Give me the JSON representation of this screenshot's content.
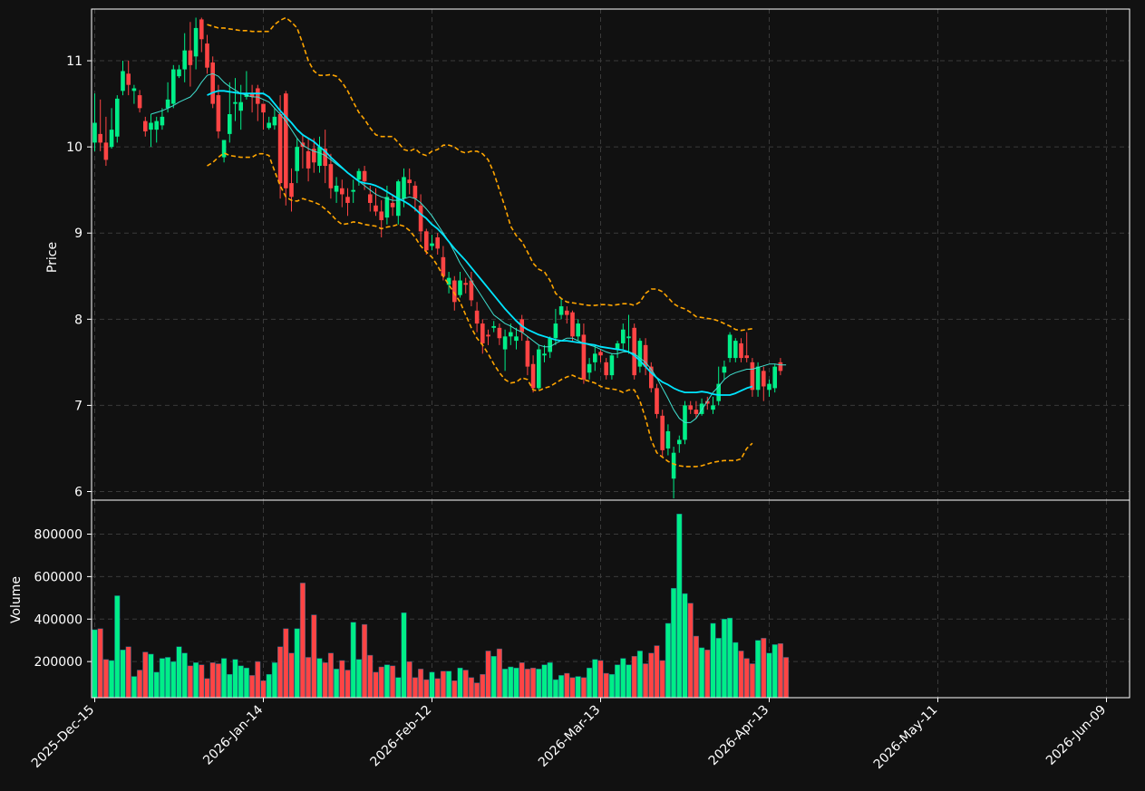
{
  "chart_data": {
    "type": "candlestick",
    "price_panel": {
      "ylabel": "Price",
      "ylim": [
        5.9,
        11.6
      ],
      "yticks": [
        6,
        7,
        8,
        9,
        10,
        11
      ]
    },
    "volume_panel": {
      "ylabel": "Volume",
      "ylim": [
        30000,
        960000
      ],
      "yticks": [
        200000,
        400000,
        600000,
        800000
      ]
    },
    "x_tick_labels": [
      "2025-Dec-15",
      "2026-Jan-14",
      "2026-Feb-12",
      "2026-Mar-13",
      "2026-Apr-13",
      "2026-May-11",
      "2026-Jun-09"
    ],
    "x_tick_indices": [
      0,
      30,
      60,
      90,
      120,
      150,
      180
    ],
    "grid": true,
    "colors": {
      "background": "#111111",
      "up": "#00ee88",
      "down": "#ff4444",
      "ma_fast": "#40e0d0",
      "ma_slow": "#00e5ff",
      "bands": "#ffa500",
      "grid": "#3a3a3a",
      "axis": "#ffffff"
    },
    "candles": [
      [
        10.05,
        10.28,
        10.62,
        9.95
      ],
      [
        10.15,
        10.05,
        10.55,
        9.95
      ],
      [
        10.05,
        9.85,
        10.35,
        9.78
      ],
      [
        10.0,
        10.2,
        10.45,
        9.98
      ],
      [
        10.12,
        10.56,
        10.6,
        10.05
      ],
      [
        10.65,
        10.88,
        11.0,
        10.6
      ],
      [
        10.85,
        10.72,
        11.0,
        10.6
      ],
      [
        10.65,
        10.68,
        10.72,
        10.5
      ],
      [
        10.6,
        10.45,
        10.66,
        10.4
      ],
      [
        10.3,
        10.18,
        10.35,
        10.12
      ],
      [
        10.2,
        10.28,
        10.38,
        10.0
      ],
      [
        10.2,
        10.3,
        10.35,
        10.05
      ],
      [
        10.25,
        10.35,
        10.45,
        10.2
      ],
      [
        10.45,
        10.55,
        10.75,
        10.4
      ],
      [
        10.5,
        10.9,
        10.95,
        10.45
      ],
      [
        10.82,
        10.9,
        10.95,
        10.8
      ],
      [
        10.9,
        11.12,
        11.32,
        10.75
      ],
      [
        11.12,
        10.95,
        11.45,
        10.7
      ],
      [
        11.05,
        11.38,
        11.5,
        10.9
      ],
      [
        11.48,
        11.25,
        11.5,
        11.1
      ],
      [
        11.2,
        10.92,
        11.3,
        10.85
      ],
      [
        10.98,
        10.5,
        11.05,
        10.45
      ],
      [
        10.6,
        10.18,
        10.72,
        10.1
      ],
      [
        9.88,
        10.08,
        10.08,
        9.82
      ],
      [
        10.15,
        10.38,
        10.75,
        10.05
      ],
      [
        10.5,
        10.52,
        10.8,
        10.3
      ],
      [
        10.42,
        10.52,
        10.72,
        10.2
      ],
      [
        10.58,
        10.62,
        10.88,
        10.55
      ],
      [
        10.62,
        10.58,
        10.72,
        10.4
      ],
      [
        10.68,
        10.5,
        10.72,
        10.3
      ],
      [
        10.5,
        10.4,
        10.5,
        10.2
      ],
      [
        10.22,
        10.28,
        10.35,
        10.2
      ],
      [
        10.25,
        10.35,
        10.45,
        10.2
      ],
      [
        10.38,
        9.58,
        10.6,
        9.4
      ],
      [
        10.62,
        9.52,
        10.65,
        9.32
      ],
      [
        9.58,
        9.42,
        9.75,
        9.25
      ],
      [
        9.72,
        10.0,
        10.1,
        9.58
      ],
      [
        10.05,
        10.0,
        10.15,
        9.75
      ],
      [
        9.95,
        9.75,
        10.1,
        9.6
      ],
      [
        9.98,
        9.82,
        10.1,
        9.7
      ],
      [
        9.78,
        10.0,
        10.12,
        9.7
      ],
      [
        9.98,
        9.78,
        10.2,
        9.58
      ],
      [
        9.8,
        9.52,
        9.92,
        9.4
      ],
      [
        9.48,
        9.55,
        9.65,
        9.35
      ],
      [
        9.52,
        9.45,
        9.62,
        9.3
      ],
      [
        9.42,
        9.35,
        9.52,
        9.2
      ],
      [
        9.48,
        9.5,
        9.62,
        9.35
      ],
      [
        9.62,
        9.72,
        9.75,
        9.55
      ],
      [
        9.72,
        9.6,
        9.78,
        9.5
      ],
      [
        9.45,
        9.35,
        9.55,
        9.25
      ],
      [
        9.32,
        9.25,
        9.52,
        9.2
      ],
      [
        9.25,
        9.15,
        9.38,
        8.95
      ],
      [
        9.18,
        9.42,
        9.55,
        9.1
      ],
      [
        9.35,
        9.3,
        9.45,
        9.2
      ],
      [
        9.2,
        9.6,
        9.62,
        9.1
      ],
      [
        9.4,
        9.65,
        9.75,
        9.3
      ],
      [
        9.62,
        9.58,
        9.75,
        9.45
      ],
      [
        9.55,
        9.4,
        9.6,
        9.25
      ],
      [
        9.32,
        9.02,
        9.45,
        8.9
      ],
      [
        9.02,
        8.8,
        9.05,
        8.75
      ],
      [
        8.85,
        8.88,
        8.98,
        8.8
      ],
      [
        8.95,
        8.82,
        9.0,
        8.75
      ],
      [
        8.72,
        8.5,
        8.85,
        8.45
      ],
      [
        8.4,
        8.48,
        8.55,
        8.3
      ],
      [
        8.45,
        8.2,
        8.5,
        8.1
      ],
      [
        8.28,
        8.45,
        8.55,
        8.25
      ],
      [
        8.42,
        8.4,
        8.48,
        8.3
      ],
      [
        8.45,
        8.22,
        8.55,
        8.15
      ],
      [
        8.1,
        7.95,
        8.2,
        7.85
      ],
      [
        7.95,
        7.72,
        8.0,
        7.6
      ],
      [
        7.82,
        7.8,
        7.88,
        7.7
      ],
      [
        7.9,
        7.92,
        7.98,
        7.85
      ],
      [
        7.9,
        7.78,
        7.95,
        7.7
      ],
      [
        7.65,
        7.8,
        7.88,
        7.4
      ],
      [
        7.8,
        7.85,
        7.95,
        7.7
      ],
      [
        7.75,
        7.8,
        7.9,
        7.65
      ],
      [
        8.0,
        7.85,
        8.05,
        7.75
      ],
      [
        7.75,
        7.45,
        7.8,
        7.35
      ],
      [
        7.48,
        7.2,
        7.58,
        7.15
      ],
      [
        7.2,
        7.65,
        7.7,
        7.18
      ],
      [
        7.58,
        7.6,
        7.7,
        7.5
      ],
      [
        7.62,
        7.78,
        7.8,
        7.55
      ],
      [
        7.78,
        7.95,
        8.12,
        7.7
      ],
      [
        8.05,
        8.15,
        8.25,
        8.0
      ],
      [
        8.1,
        8.05,
        8.15,
        7.95
      ],
      [
        8.08,
        7.8,
        8.1,
        7.75
      ],
      [
        7.8,
        7.95,
        8.0,
        7.75
      ],
      [
        7.82,
        7.3,
        7.95,
        7.25
      ],
      [
        7.38,
        7.48,
        7.55,
        7.3
      ],
      [
        7.5,
        7.6,
        7.7,
        7.4
      ],
      [
        7.62,
        7.58,
        7.65,
        7.5
      ],
      [
        7.5,
        7.35,
        7.55,
        7.3
      ],
      [
        7.35,
        7.58,
        7.6,
        7.3
      ],
      [
        7.65,
        7.72,
        7.75,
        7.55
      ],
      [
        7.72,
        7.88,
        7.95,
        7.65
      ],
      [
        7.78,
        7.8,
        8.05,
        7.6
      ],
      [
        7.9,
        7.35,
        7.95,
        7.3
      ],
      [
        7.45,
        7.75,
        7.78,
        7.38
      ],
      [
        7.7,
        7.45,
        7.78,
        7.35
      ],
      [
        7.45,
        7.2,
        7.5,
        7.15
      ],
      [
        7.2,
        6.9,
        7.25,
        6.85
      ],
      [
        6.88,
        6.48,
        6.95,
        6.4
      ],
      [
        6.5,
        6.7,
        6.78,
        6.42
      ],
      [
        6.15,
        6.45,
        6.52,
        5.92
      ],
      [
        6.55,
        6.6,
        6.65,
        6.45
      ],
      [
        6.6,
        7.0,
        7.05,
        6.55
      ],
      [
        7.0,
        6.95,
        7.05,
        6.9
      ],
      [
        6.95,
        6.9,
        7.05,
        6.85
      ],
      [
        6.9,
        7.02,
        7.08,
        6.88
      ],
      [
        7.05,
        7.02,
        7.1,
        6.95
      ],
      [
        6.95,
        7.0,
        7.1,
        6.9
      ],
      [
        7.05,
        7.25,
        7.45,
        7.0
      ],
      [
        7.38,
        7.45,
        7.52,
        7.3
      ],
      [
        7.55,
        7.82,
        7.85,
        7.5
      ],
      [
        7.55,
        7.75,
        7.78,
        7.5
      ],
      [
        7.72,
        7.55,
        7.78,
        7.5
      ],
      [
        7.58,
        7.55,
        7.85,
        7.5
      ],
      [
        7.5,
        7.18,
        7.55,
        7.1
      ],
      [
        7.18,
        7.45,
        7.5,
        7.1
      ],
      [
        7.4,
        7.22,
        7.45,
        7.05
      ],
      [
        7.18,
        7.25,
        7.3,
        7.1
      ],
      [
        7.2,
        7.45,
        7.48,
        7.15
      ],
      [
        7.5,
        7.4,
        7.55,
        7.35
      ]
    ],
    "volume": [
      350000,
      355000,
      210000,
      205000,
      510000,
      255000,
      270000,
      130000,
      160000,
      245000,
      235000,
      150000,
      215000,
      220000,
      200000,
      270000,
      240000,
      180000,
      195000,
      185000,
      120000,
      195000,
      190000,
      215000,
      140000,
      210000,
      180000,
      170000,
      135000,
      200000,
      110000,
      140000,
      195000,
      270000,
      355000,
      240000,
      355000,
      570000,
      220000,
      420000,
      215000,
      195000,
      240000,
      165000,
      205000,
      160000,
      385000,
      210000,
      375000,
      230000,
      150000,
      175000,
      185000,
      180000,
      125000,
      430000,
      200000,
      125000,
      165000,
      115000,
      150000,
      120000,
      155000,
      155000,
      110000,
      170000,
      160000,
      125000,
      100000,
      140000,
      250000,
      225000,
      260000,
      165000,
      175000,
      170000,
      195000,
      165000,
      170000,
      165000,
      185000,
      195000,
      115000,
      135000,
      145000,
      125000,
      130000,
      125000,
      170000,
      210000,
      205000,
      145000,
      140000,
      185000,
      215000,
      185000,
      225000,
      250000,
      190000,
      240000,
      275000,
      205000,
      380000,
      545000,
      895000,
      520000,
      475000,
      320000,
      265000,
      255000,
      380000,
      310000,
      400000,
      405000,
      290000,
      250000,
      215000,
      190000,
      300000,
      310000,
      240000,
      280000,
      285000,
      220000
    ],
    "ma_fast": [
      null,
      null,
      null,
      null,
      null,
      null,
      null,
      null,
      null,
      null,
      10.38,
      10.4,
      10.42,
      10.45,
      10.48,
      10.52,
      10.55,
      10.58,
      10.65,
      10.75,
      10.83,
      10.85,
      10.82,
      10.75,
      10.7,
      10.66,
      10.62,
      10.6,
      10.58,
      10.58,
      10.55,
      10.52,
      10.45,
      10.38,
      10.3,
      10.2,
      10.1,
      10.02,
      9.98,
      9.95,
      9.93,
      9.9,
      9.85,
      9.8,
      9.75,
      9.7,
      9.65,
      9.6,
      9.55,
      9.5,
      9.45,
      9.42,
      9.4,
      9.38,
      9.38,
      9.4,
      9.42,
      9.4,
      9.35,
      9.28,
      9.2,
      9.1,
      9.0,
      8.9,
      8.78,
      8.65,
      8.55,
      8.45,
      8.35,
      8.25,
      8.15,
      8.05,
      8.0,
      7.95,
      7.92,
      7.88,
      7.85,
      7.8,
      7.75,
      7.7,
      7.68,
      7.68,
      7.72,
      7.75,
      7.78,
      7.78,
      7.75,
      7.72,
      7.7,
      7.68,
      7.65,
      7.62,
      7.6,
      7.6,
      7.62,
      7.62,
      7.6,
      7.55,
      7.5,
      7.42,
      7.32,
      7.2,
      7.08,
      6.95,
      6.85,
      6.8,
      6.8,
      6.85,
      6.95,
      7.05,
      7.15,
      7.22,
      7.3,
      7.35,
      7.38,
      7.4,
      7.42,
      7.42,
      7.44,
      7.46,
      7.48,
      7.48,
      7.47,
      7.47
    ],
    "ma_slow": [
      null,
      null,
      null,
      null,
      null,
      null,
      null,
      null,
      null,
      null,
      null,
      null,
      null,
      null,
      null,
      null,
      null,
      null,
      null,
      null,
      10.6,
      10.63,
      10.65,
      10.65,
      10.64,
      10.63,
      10.62,
      10.62,
      10.62,
      10.62,
      10.62,
      10.58,
      10.5,
      10.42,
      10.35,
      10.28,
      10.2,
      10.14,
      10.1,
      10.06,
      10.0,
      9.95,
      9.88,
      9.82,
      9.76,
      9.7,
      9.65,
      9.6,
      9.58,
      9.57,
      9.55,
      9.52,
      9.48,
      9.44,
      9.4,
      9.37,
      9.33,
      9.28,
      9.22,
      9.17,
      9.1,
      9.05,
      8.98,
      8.9,
      8.82,
      8.75,
      8.68,
      8.6,
      8.52,
      8.44,
      8.36,
      8.28,
      8.2,
      8.12,
      8.05,
      7.98,
      7.92,
      7.88,
      7.85,
      7.82,
      7.8,
      7.78,
      7.76,
      7.75,
      7.75,
      7.74,
      7.73,
      7.72,
      7.71,
      7.7,
      7.68,
      7.67,
      7.66,
      7.65,
      7.64,
      7.62,
      7.58,
      7.52,
      7.45,
      7.38,
      7.32,
      7.27,
      7.24,
      7.2,
      7.17,
      7.15,
      7.15,
      7.15,
      7.16,
      7.15,
      7.13,
      7.12,
      7.12,
      7.12,
      7.14,
      7.17,
      7.2,
      7.22
    ],
    "band_upper": [
      null,
      null,
      null,
      null,
      null,
      null,
      null,
      null,
      null,
      null,
      null,
      null,
      null,
      null,
      null,
      null,
      null,
      null,
      null,
      null,
      11.42,
      11.4,
      11.38,
      11.38,
      11.37,
      11.36,
      11.35,
      11.35,
      11.34,
      11.34,
      11.34,
      11.34,
      11.42,
      11.47,
      11.5,
      11.45,
      11.38,
      11.2,
      11.0,
      10.88,
      10.83,
      10.83,
      10.84,
      10.82,
      10.75,
      10.65,
      10.52,
      10.4,
      10.32,
      10.22,
      10.14,
      10.12,
      10.12,
      10.12,
      10.05,
      9.97,
      9.95,
      9.98,
      9.92,
      9.9,
      9.95,
      9.97,
      10.02,
      10.02,
      10.0,
      9.95,
      9.93,
      9.95,
      9.95,
      9.92,
      9.85,
      9.7,
      9.5,
      9.3,
      9.08,
      8.97,
      8.9,
      8.78,
      8.65,
      8.58,
      8.55,
      8.45,
      8.3,
      8.24,
      8.2,
      8.19,
      8.18,
      8.17,
      8.16,
      8.16,
      8.17,
      8.17,
      8.16,
      8.17,
      8.18,
      8.18,
      8.16,
      8.2,
      8.3,
      8.35,
      8.35,
      8.32,
      8.25,
      8.18,
      8.14,
      8.12,
      8.08,
      8.03,
      8.02,
      8.01,
      8.0,
      7.98,
      7.95,
      7.92,
      7.88,
      7.87,
      7.88,
      7.89
    ],
    "band_lower": [
      null,
      null,
      null,
      null,
      null,
      null,
      null,
      null,
      null,
      null,
      null,
      null,
      null,
      null,
      null,
      null,
      null,
      null,
      null,
      null,
      9.78,
      9.82,
      9.88,
      9.93,
      9.9,
      9.89,
      9.88,
      9.88,
      9.88,
      9.92,
      9.92,
      9.9,
      9.72,
      9.55,
      9.42,
      9.38,
      9.37,
      9.4,
      9.38,
      9.36,
      9.33,
      9.28,
      9.22,
      9.15,
      9.1,
      9.11,
      9.13,
      9.12,
      9.1,
      9.09,
      9.08,
      9.05,
      9.07,
      9.08,
      9.1,
      9.08,
      9.03,
      8.95,
      8.85,
      8.78,
      8.72,
      8.62,
      8.5,
      8.4,
      8.3,
      8.2,
      8.05,
      7.9,
      7.78,
      7.7,
      7.6,
      7.48,
      7.38,
      7.3,
      7.26,
      7.27,
      7.32,
      7.3,
      7.18,
      7.17,
      7.2,
      7.22,
      7.26,
      7.3,
      7.33,
      7.35,
      7.32,
      7.3,
      7.28,
      7.26,
      7.22,
      7.2,
      7.19,
      7.18,
      7.15,
      7.18,
      7.18,
      7.05,
      6.85,
      6.6,
      6.45,
      6.4,
      6.35,
      6.32,
      6.3,
      6.29,
      6.29,
      6.29,
      6.3,
      6.32,
      6.34,
      6.35,
      6.36,
      6.36,
      6.36,
      6.38,
      6.5,
      6.56
    ]
  }
}
